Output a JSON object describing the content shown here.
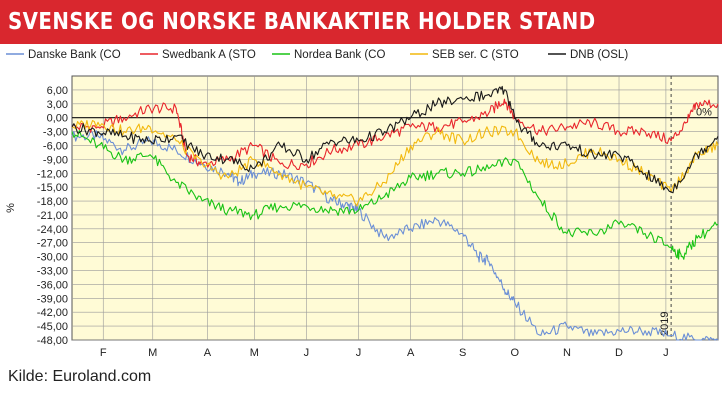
{
  "title": "SVENSKE OG NORSKE BANKAKTIER HOLDER STAND",
  "source": "Kilde: Euroland.com",
  "colors": {
    "title_bg": "#d9272e",
    "plot_bg": "#fffbd6"
  },
  "chart_data": {
    "type": "line",
    "xlabel": "",
    "ylabel": "%",
    "ylim": [
      -48,
      9
    ],
    "yticks": [
      "6,00",
      "3,00",
      "0,00",
      "-3,00",
      "-6,00",
      "-9,00",
      "-12,00",
      "-15,00",
      "-18,00",
      "-21,00",
      "-24,00",
      "-27,00",
      "-30,00",
      "-33,00",
      "-36,00",
      "-39,00",
      "-42,00",
      "-45,00",
      "-48,00"
    ],
    "ytick_values": [
      6,
      3,
      0,
      -3,
      -6,
      -9,
      -12,
      -15,
      -18,
      -21,
      -24,
      -27,
      -30,
      -33,
      -36,
      -39,
      -42,
      -45,
      -48
    ],
    "month_labels": [
      "F",
      "M",
      "A",
      "M",
      "J",
      "J",
      "A",
      "S",
      "O",
      "N",
      "D",
      "J"
    ],
    "month_positions": [
      0.6,
      1.55,
      2.6,
      3.5,
      4.5,
      5.5,
      6.5,
      7.5,
      8.5,
      9.5,
      10.5,
      11.4
    ],
    "x_range": [
      0,
      12.4
    ],
    "reference_line": {
      "y": 0,
      "label": "0%"
    },
    "marker": {
      "x": 11.5,
      "label": "2019"
    },
    "grid": true,
    "legend_position": "top",
    "series": [
      {
        "name": "Danske Bank (CO",
        "color": "#6b8fd6",
        "x": [
          0,
          0.5,
          1,
          1.5,
          2,
          2.5,
          3,
          3.2,
          3.5,
          4,
          4.5,
          5,
          5.3,
          5.5,
          6,
          6.5,
          7,
          7.5,
          7.8,
          8,
          8.3,
          8.5,
          9,
          9.5,
          10,
          10.5,
          11,
          11.5,
          12,
          12.4
        ],
        "y": [
          -4,
          -4,
          -7,
          -5,
          -7,
          -10,
          -12,
          -14,
          -12,
          -12,
          -14,
          -18,
          -19,
          -20,
          -26,
          -24,
          -22,
          -25,
          -30,
          -31,
          -37,
          -40,
          -47,
          -45,
          -47,
          -46,
          -46,
          -47,
          -48,
          -48
        ]
      },
      {
        "name": "Swedbank A (STO",
        "color": "#e8262d",
        "x": [
          0,
          0.5,
          1,
          1.5,
          2,
          2.2,
          2.5,
          3,
          3.5,
          4,
          4.5,
          5,
          5.5,
          6,
          6.5,
          7,
          7.5,
          8,
          8.3,
          8.5,
          9,
          9.5,
          10,
          10.5,
          11,
          11.5,
          11.8,
          12,
          12.4
        ],
        "y": [
          -2,
          -2,
          0,
          2,
          2,
          -8,
          -10,
          -9,
          -6,
          -10,
          -10,
          -7,
          -6,
          -4,
          -2,
          -2,
          -1,
          1,
          4,
          0,
          -3,
          -2,
          -1,
          -3,
          -3,
          -5,
          -1,
          3,
          3
        ]
      },
      {
        "name": "Nordea Bank (CO",
        "color": "#19c315",
        "x": [
          0,
          0.5,
          1,
          1.5,
          2,
          2.5,
          3,
          3.5,
          4,
          4.5,
          5,
          5.5,
          6,
          6.5,
          7,
          7.5,
          8,
          8.5,
          9,
          9.5,
          10,
          10.5,
          11,
          11.5,
          11.7,
          12,
          12.4
        ],
        "y": [
          -3,
          -6,
          -9,
          -8,
          -14,
          -18,
          -20,
          -21,
          -19,
          -19,
          -20,
          -20,
          -17,
          -13,
          -12,
          -12,
          -11,
          -9,
          -18,
          -25,
          -25,
          -23,
          -25,
          -28,
          -30,
          -26,
          -23
        ]
      },
      {
        "name": "SEB ser. C (STO",
        "color": "#f2b90f",
        "x": [
          0,
          0.5,
          1,
          1.5,
          2,
          2.5,
          3,
          3.5,
          4,
          4.5,
          5,
          5.5,
          6,
          6.5,
          7,
          7.5,
          8,
          8.5,
          9,
          9.5,
          10,
          10.5,
          11,
          11.5,
          12,
          12.4
        ],
        "y": [
          -2,
          -1,
          -3,
          -2,
          -5,
          -10,
          -13,
          -9,
          -12,
          -15,
          -17,
          -18,
          -14,
          -6,
          -3,
          -5,
          -3,
          -3,
          -10,
          -10,
          -7,
          -9,
          -12,
          -16,
          -8,
          -6
        ]
      },
      {
        "name": "DNB (OSL)",
        "color": "#1a1a1a",
        "x": [
          0,
          0.5,
          1,
          1.5,
          2,
          2.5,
          3,
          3.5,
          4,
          4.5,
          5,
          5.5,
          6,
          6.5,
          7,
          7.5,
          8,
          8.3,
          8.6,
          9,
          9.5,
          10,
          10.5,
          11,
          11.5,
          12,
          12.4
        ],
        "y": [
          -2,
          -3,
          -4,
          -5,
          -4,
          -8,
          -9,
          -11,
          -6,
          -9,
          -5,
          -5,
          -3,
          0,
          3,
          4,
          5,
          6,
          -2,
          -6,
          -6,
          -8,
          -8,
          -12,
          -16,
          -8,
          -4
        ]
      }
    ]
  }
}
